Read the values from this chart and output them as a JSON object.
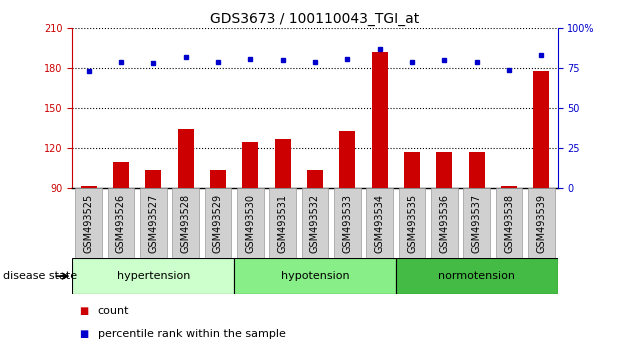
{
  "title": "GDS3673 / 100110043_TGI_at",
  "categories": [
    "GSM493525",
    "GSM493526",
    "GSM493527",
    "GSM493528",
    "GSM493529",
    "GSM493530",
    "GSM493531",
    "GSM493532",
    "GSM493533",
    "GSM493534",
    "GSM493535",
    "GSM493536",
    "GSM493537",
    "GSM493538",
    "GSM493539"
  ],
  "count_values": [
    91,
    109,
    103,
    134,
    103,
    124,
    127,
    103,
    133,
    192,
    117,
    117,
    117,
    91,
    178
  ],
  "percentile_values": [
    73,
    79,
    78,
    82,
    79,
    81,
    80,
    79,
    81,
    87,
    79,
    80,
    79,
    74,
    83
  ],
  "groups": [
    {
      "label": "hypertension",
      "start": 0,
      "end": 4,
      "color": "#ccffcc"
    },
    {
      "label": "hypotension",
      "start": 5,
      "end": 9,
      "color": "#88ee88"
    },
    {
      "label": "normotension",
      "start": 10,
      "end": 14,
      "color": "#44bb44"
    }
  ],
  "ylim_left": [
    90,
    210
  ],
  "ylim_right": [
    0,
    100
  ],
  "yticks_left": [
    90,
    120,
    150,
    180,
    210
  ],
  "yticks_right": [
    0,
    25,
    50,
    75,
    100
  ],
  "bar_color": "#cc0000",
  "dot_color": "#0000cc",
  "background_color": "#ffffff",
  "title_fontsize": 10,
  "tick_fontsize": 7,
  "label_fontsize": 8,
  "group_fontsize": 8,
  "legend_fontsize": 8,
  "disease_state_label": "disease state"
}
